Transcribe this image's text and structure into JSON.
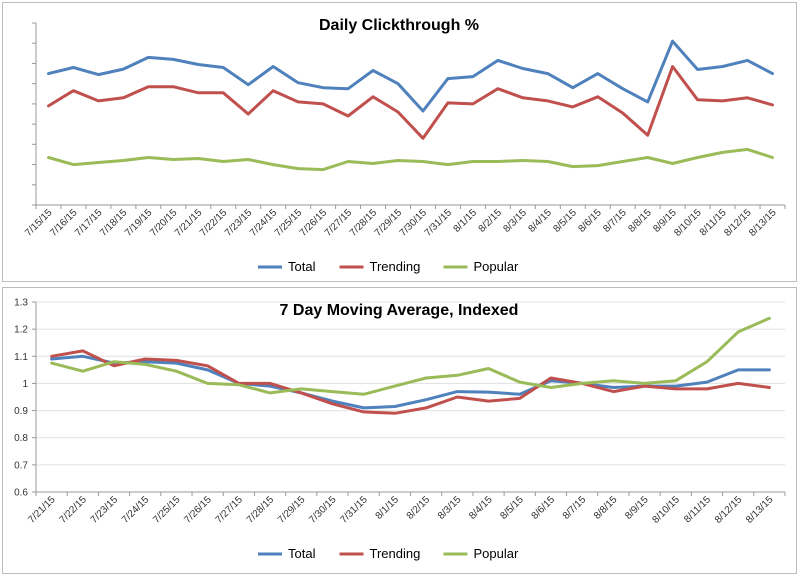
{
  "chart_data": [
    {
      "type": "line",
      "title": "Daily Clickthrough %",
      "categories": [
        "7/15/15",
        "7/16/15",
        "7/17/15",
        "7/18/15",
        "7/19/15",
        "7/20/15",
        "7/21/15",
        "7/22/15",
        "7/23/15",
        "7/24/15",
        "7/25/15",
        "7/26/15",
        "7/27/15",
        "7/28/15",
        "7/29/15",
        "7/30/15",
        "7/31/15",
        "8/1/15",
        "8/2/15",
        "8/3/15",
        "8/4/15",
        "8/5/15",
        "8/6/15",
        "8/7/15",
        "8/8/15",
        "8/9/15",
        "8/10/15",
        "8/11/15",
        "8/12/15",
        "8/13/15"
      ],
      "series": [
        {
          "name": "Total",
          "color": "#4f81bd",
          "values": [
            6.5,
            6.8,
            6.45,
            6.72,
            7.3,
            7.2,
            6.95,
            6.8,
            5.95,
            6.85,
            6.05,
            5.8,
            5.75,
            6.65,
            6.0,
            4.65,
            6.25,
            6.35,
            7.15,
            6.75,
            6.5,
            5.8,
            6.5,
            5.75,
            5.1,
            8.1,
            6.7,
            6.85,
            7.15,
            6.5
          ]
        },
        {
          "name": "Trending",
          "color": "#c0504d",
          "values": [
            4.9,
            5.65,
            5.15,
            5.3,
            5.85,
            5.85,
            5.55,
            5.55,
            4.5,
            5.65,
            5.1,
            5.0,
            4.4,
            5.35,
            4.6,
            3.3,
            5.05,
            5.0,
            5.75,
            5.3,
            5.15,
            4.85,
            5.35,
            4.55,
            3.45,
            6.85,
            5.2,
            5.15,
            5.3,
            4.95
          ]
        },
        {
          "name": "Popular",
          "color": "#9bbb59",
          "values": [
            2.35,
            2.0,
            2.1,
            2.2,
            2.35,
            2.25,
            2.3,
            2.15,
            2.25,
            2.0,
            1.8,
            1.75,
            2.15,
            2.05,
            2.2,
            2.15,
            2.0,
            2.15,
            2.15,
            2.2,
            2.15,
            1.9,
            1.95,
            2.15,
            2.35,
            2.05,
            2.35,
            2.6,
            2.75,
            2.35
          ]
        }
      ],
      "ylim": [
        0,
        9
      ],
      "y_tick_labels_visible": false,
      "legend": {
        "position": "bottom",
        "entries": [
          "Total",
          "Trending",
          "Popular"
        ]
      }
    },
    {
      "type": "line",
      "title": "7 Day Moving Average, Indexed",
      "categories": [
        "7/21/15",
        "7/22/15",
        "7/23/15",
        "7/24/15",
        "7/25/15",
        "7/26/15",
        "7/27/15",
        "7/28/15",
        "7/29/15",
        "7/30/15",
        "7/31/15",
        "8/1/15",
        "8/2/15",
        "8/3/15",
        "8/4/15",
        "8/5/15",
        "8/6/15",
        "8/7/15",
        "8/8/15",
        "8/9/15",
        "8/10/15",
        "8/11/15",
        "8/12/15",
        "8/13/15"
      ],
      "series": [
        {
          "name": "Total",
          "color": "#4f81bd",
          "values": [
            1.09,
            1.1,
            1.075,
            1.08,
            1.075,
            1.05,
            1.0,
            0.99,
            0.965,
            0.935,
            0.91,
            0.915,
            0.94,
            0.97,
            0.968,
            0.96,
            1.01,
            1.0,
            0.985,
            0.99,
            0.99,
            1.005,
            1.05,
            1.05
          ]
        },
        {
          "name": "Trending",
          "color": "#c0504d",
          "values": [
            1.1,
            1.12,
            1.065,
            1.09,
            1.085,
            1.065,
            1.0,
            1.0,
            0.965,
            0.925,
            0.895,
            0.89,
            0.91,
            0.95,
            0.935,
            0.945,
            1.02,
            1.0,
            0.97,
            0.99,
            0.98,
            0.98,
            1.0,
            0.985
          ]
        },
        {
          "name": "Popular",
          "color": "#9bbb59",
          "values": [
            1.075,
            1.045,
            1.08,
            1.07,
            1.045,
            1.0,
            0.995,
            0.965,
            0.98,
            0.97,
            0.96,
            0.99,
            1.02,
            1.03,
            1.055,
            1.005,
            0.985,
            1.0,
            1.01,
            1.0,
            1.01,
            1.08,
            1.19,
            1.24
          ]
        }
      ],
      "ylim": [
        0.6,
        1.3
      ],
      "yticks": [
        "0.6",
        "0.7",
        "0.8",
        "0.9",
        "1",
        "1.1",
        "1.2",
        "1.3"
      ],
      "legend": {
        "position": "bottom",
        "entries": [
          "Total",
          "Trending",
          "Popular"
        ]
      }
    }
  ]
}
